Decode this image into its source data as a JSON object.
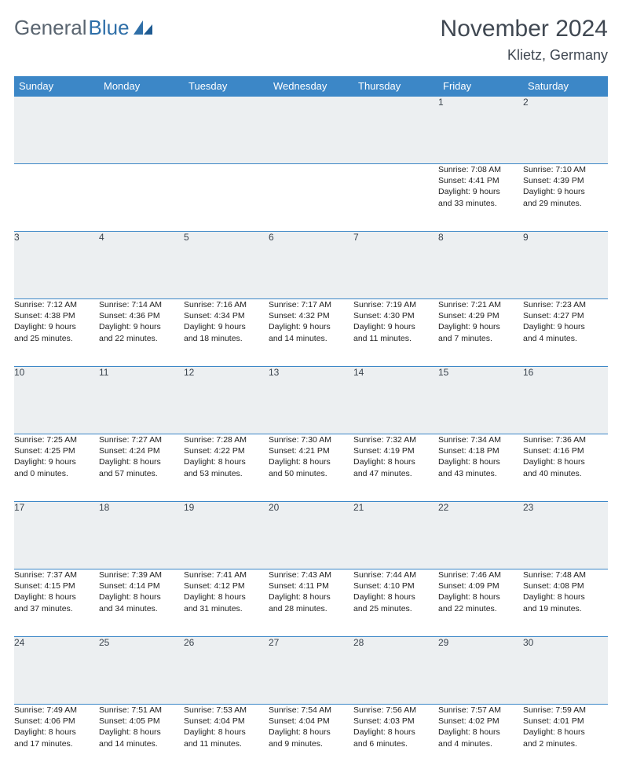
{
  "brand": {
    "part1": "General",
    "part2": "Blue"
  },
  "title": "November 2024",
  "location": "Klietz, Germany",
  "colors": {
    "header_bg": "#3c87c7",
    "header_text": "#ffffff",
    "daynum_bg": "#eceff1",
    "border": "#3c87c7",
    "title_color": "#404852",
    "logo_gray": "#5a6570",
    "logo_blue": "#2f6fa8"
  },
  "day_headers": [
    "Sunday",
    "Monday",
    "Tuesday",
    "Wednesday",
    "Thursday",
    "Friday",
    "Saturday"
  ],
  "weeks": [
    {
      "nums": [
        "",
        "",
        "",
        "",
        "",
        "1",
        "2"
      ],
      "cells": [
        [],
        [],
        [],
        [],
        [],
        [
          "Sunrise: 7:08 AM",
          "Sunset: 4:41 PM",
          "Daylight: 9 hours",
          "and 33 minutes."
        ],
        [
          "Sunrise: 7:10 AM",
          "Sunset: 4:39 PM",
          "Daylight: 9 hours",
          "and 29 minutes."
        ]
      ]
    },
    {
      "nums": [
        "3",
        "4",
        "5",
        "6",
        "7",
        "8",
        "9"
      ],
      "cells": [
        [
          "Sunrise: 7:12 AM",
          "Sunset: 4:38 PM",
          "Daylight: 9 hours",
          "and 25 minutes."
        ],
        [
          "Sunrise: 7:14 AM",
          "Sunset: 4:36 PM",
          "Daylight: 9 hours",
          "and 22 minutes."
        ],
        [
          "Sunrise: 7:16 AM",
          "Sunset: 4:34 PM",
          "Daylight: 9 hours",
          "and 18 minutes."
        ],
        [
          "Sunrise: 7:17 AM",
          "Sunset: 4:32 PM",
          "Daylight: 9 hours",
          "and 14 minutes."
        ],
        [
          "Sunrise: 7:19 AM",
          "Sunset: 4:30 PM",
          "Daylight: 9 hours",
          "and 11 minutes."
        ],
        [
          "Sunrise: 7:21 AM",
          "Sunset: 4:29 PM",
          "Daylight: 9 hours",
          "and 7 minutes."
        ],
        [
          "Sunrise: 7:23 AM",
          "Sunset: 4:27 PM",
          "Daylight: 9 hours",
          "and 4 minutes."
        ]
      ]
    },
    {
      "nums": [
        "10",
        "11",
        "12",
        "13",
        "14",
        "15",
        "16"
      ],
      "cells": [
        [
          "Sunrise: 7:25 AM",
          "Sunset: 4:25 PM",
          "Daylight: 9 hours",
          "and 0 minutes."
        ],
        [
          "Sunrise: 7:27 AM",
          "Sunset: 4:24 PM",
          "Daylight: 8 hours",
          "and 57 minutes."
        ],
        [
          "Sunrise: 7:28 AM",
          "Sunset: 4:22 PM",
          "Daylight: 8 hours",
          "and 53 minutes."
        ],
        [
          "Sunrise: 7:30 AM",
          "Sunset: 4:21 PM",
          "Daylight: 8 hours",
          "and 50 minutes."
        ],
        [
          "Sunrise: 7:32 AM",
          "Sunset: 4:19 PM",
          "Daylight: 8 hours",
          "and 47 minutes."
        ],
        [
          "Sunrise: 7:34 AM",
          "Sunset: 4:18 PM",
          "Daylight: 8 hours",
          "and 43 minutes."
        ],
        [
          "Sunrise: 7:36 AM",
          "Sunset: 4:16 PM",
          "Daylight: 8 hours",
          "and 40 minutes."
        ]
      ]
    },
    {
      "nums": [
        "17",
        "18",
        "19",
        "20",
        "21",
        "22",
        "23"
      ],
      "cells": [
        [
          "Sunrise: 7:37 AM",
          "Sunset: 4:15 PM",
          "Daylight: 8 hours",
          "and 37 minutes."
        ],
        [
          "Sunrise: 7:39 AM",
          "Sunset: 4:14 PM",
          "Daylight: 8 hours",
          "and 34 minutes."
        ],
        [
          "Sunrise: 7:41 AM",
          "Sunset: 4:12 PM",
          "Daylight: 8 hours",
          "and 31 minutes."
        ],
        [
          "Sunrise: 7:43 AM",
          "Sunset: 4:11 PM",
          "Daylight: 8 hours",
          "and 28 minutes."
        ],
        [
          "Sunrise: 7:44 AM",
          "Sunset: 4:10 PM",
          "Daylight: 8 hours",
          "and 25 minutes."
        ],
        [
          "Sunrise: 7:46 AM",
          "Sunset: 4:09 PM",
          "Daylight: 8 hours",
          "and 22 minutes."
        ],
        [
          "Sunrise: 7:48 AM",
          "Sunset: 4:08 PM",
          "Daylight: 8 hours",
          "and 19 minutes."
        ]
      ]
    },
    {
      "nums": [
        "24",
        "25",
        "26",
        "27",
        "28",
        "29",
        "30"
      ],
      "cells": [
        [
          "Sunrise: 7:49 AM",
          "Sunset: 4:06 PM",
          "Daylight: 8 hours",
          "and 17 minutes."
        ],
        [
          "Sunrise: 7:51 AM",
          "Sunset: 4:05 PM",
          "Daylight: 8 hours",
          "and 14 minutes."
        ],
        [
          "Sunrise: 7:53 AM",
          "Sunset: 4:04 PM",
          "Daylight: 8 hours",
          "and 11 minutes."
        ],
        [
          "Sunrise: 7:54 AM",
          "Sunset: 4:04 PM",
          "Daylight: 8 hours",
          "and 9 minutes."
        ],
        [
          "Sunrise: 7:56 AM",
          "Sunset: 4:03 PM",
          "Daylight: 8 hours",
          "and 6 minutes."
        ],
        [
          "Sunrise: 7:57 AM",
          "Sunset: 4:02 PM",
          "Daylight: 8 hours",
          "and 4 minutes."
        ],
        [
          "Sunrise: 7:59 AM",
          "Sunset: 4:01 PM",
          "Daylight: 8 hours",
          "and 2 minutes."
        ]
      ]
    }
  ]
}
